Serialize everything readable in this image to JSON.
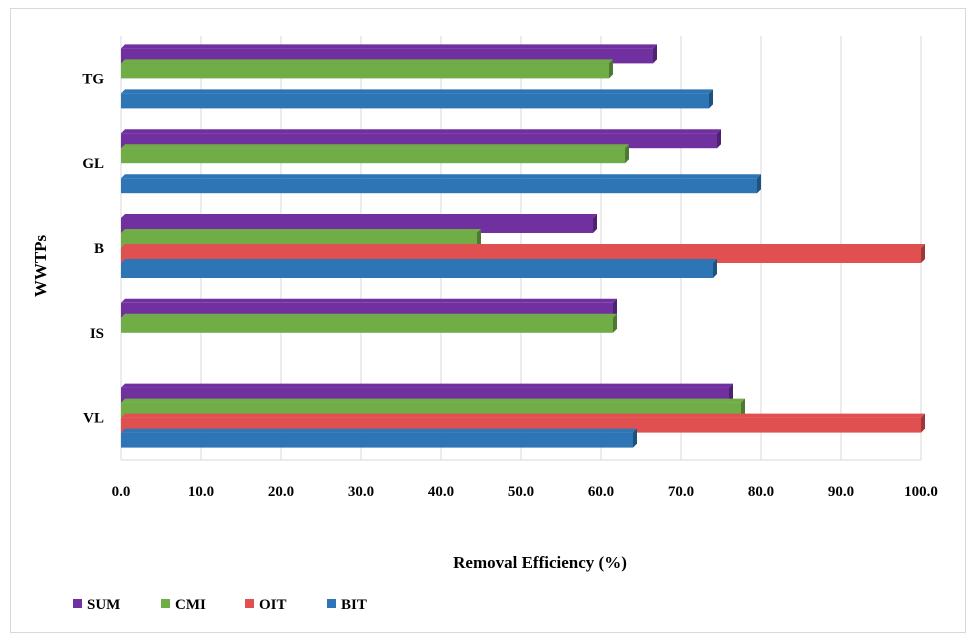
{
  "chart_data": {
    "type": "bar",
    "orientation": "horizontal",
    "title": "",
    "xlabel": "Removal Efficiency (%)",
    "ylabel": "WWTPs",
    "xlim": [
      0,
      100
    ],
    "x_ticks": [
      "0.0",
      "10.0",
      "20.0",
      "30.0",
      "40.0",
      "50.0",
      "60.0",
      "70.0",
      "80.0",
      "90.0",
      "100.0"
    ],
    "categories": [
      "TG",
      "GL",
      "B",
      "IS",
      "VL"
    ],
    "series": [
      {
        "name": "SUM",
        "color": "#7030a0",
        "values": [
          66.5,
          74.5,
          59.0,
          61.5,
          76.0
        ]
      },
      {
        "name": "CMI",
        "color": "#70ad47",
        "values": [
          61.0,
          63.0,
          44.5,
          61.5,
          77.5
        ]
      },
      {
        "name": "OIT",
        "color": "#e05050",
        "values": [
          null,
          null,
          100.0,
          null,
          100.0
        ]
      },
      {
        "name": "BIT",
        "color": "#2e75b6",
        "values": [
          73.5,
          79.5,
          74.0,
          null,
          64.0
        ]
      }
    ],
    "grid": true,
    "legend_position": "bottom-left"
  }
}
